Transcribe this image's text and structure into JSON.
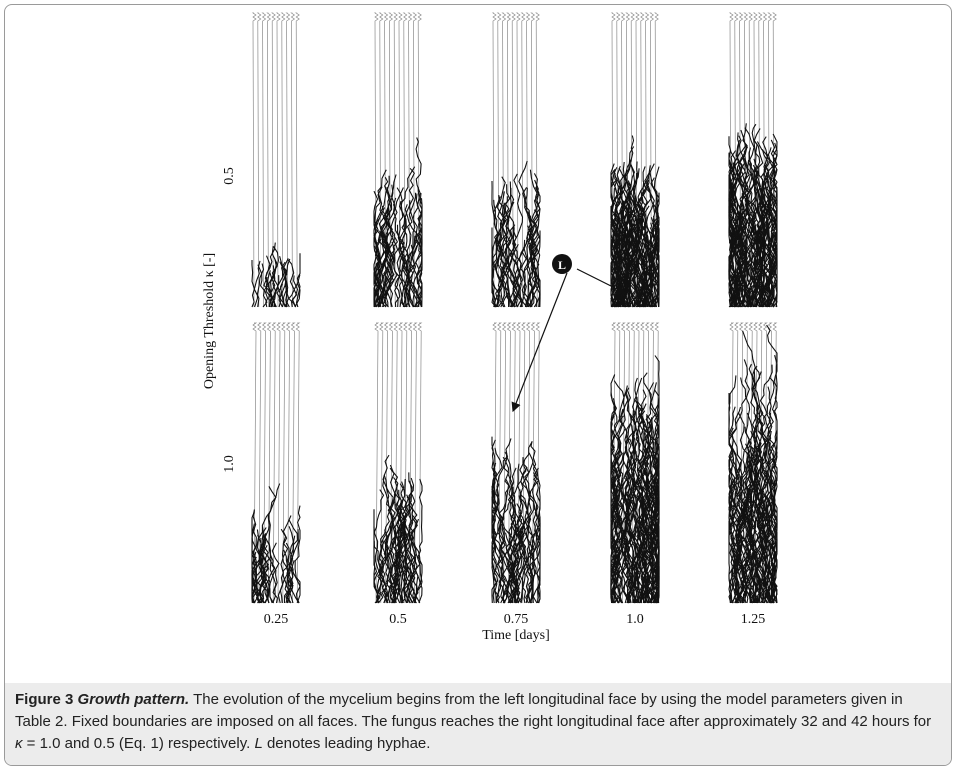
{
  "figure": {
    "row_labels": [
      "0.5",
      "1.0"
    ],
    "y_axis_title": "Opening Threshold κ [-]",
    "column_labels": [
      "0.25",
      "0.5",
      "0.75",
      "1.0",
      "1.25"
    ],
    "x_axis_title": "Time [days]",
    "annotation": "L"
  },
  "caption": {
    "label": "Figure 3",
    "title": "Growth pattern.",
    "body": [
      "The evolution of the mycelium begins from the left longitudinal face by using the model parameters given in Table 2. Fixed boundaries are imposed on all faces. The fungus reaches the right longitudinal face after approximately 32 and 42 hours for ",
      "κ",
      " = 1.0 and 0.5 (Eq. 1) respectively. ",
      "L",
      " denotes leading hyphae."
    ]
  }
}
